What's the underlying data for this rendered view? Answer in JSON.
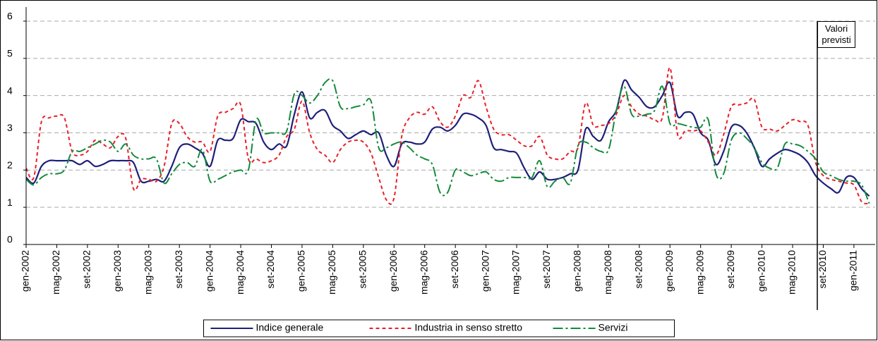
{
  "chart_data": {
    "type": "line",
    "annotation": "Valori previsti",
    "categories": [
      "gen-2002",
      null,
      null,
      null,
      "mag-2002",
      null,
      null,
      null,
      "set-2002",
      null,
      null,
      null,
      "gen-2003",
      null,
      null,
      null,
      "mag-2003",
      null,
      null,
      null,
      "set-2003",
      null,
      null,
      null,
      "gen-2004",
      null,
      null,
      null,
      "mag-2004",
      null,
      null,
      null,
      "set-2004",
      null,
      null,
      null,
      "gen-2005",
      null,
      null,
      null,
      "mag-2005",
      null,
      null,
      null,
      "set-2005",
      null,
      null,
      null,
      "gen-2006",
      null,
      null,
      null,
      "mag-2006",
      null,
      null,
      null,
      "set-2006",
      null,
      null,
      null,
      "gen-2007",
      null,
      null,
      null,
      "mag-2007",
      null,
      null,
      null,
      "set-2007",
      null,
      null,
      null,
      "gen-2008",
      null,
      null,
      null,
      "mag-2008",
      null,
      null,
      null,
      "set-2008",
      null,
      null,
      null,
      "gen-2009",
      null,
      null,
      null,
      "mag-2009",
      null,
      null,
      null,
      "set-2009",
      null,
      null,
      null,
      "gen-2010",
      null,
      null,
      null,
      "mag-2010",
      null,
      null,
      null,
      "set-2010",
      null,
      null,
      null,
      "gen-2011",
      null,
      null
    ],
    "series": [
      {
        "name": "Indice generale",
        "color": "#1f1f7a",
        "dash": "solid",
        "values": [
          1.8,
          1.65,
          2.1,
          2.25,
          2.25,
          2.25,
          2.25,
          2.15,
          2.25,
          2.1,
          2.15,
          2.25,
          2.25,
          2.25,
          2.2,
          1.7,
          1.7,
          1.75,
          1.7,
          2.1,
          2.6,
          2.7,
          2.6,
          2.45,
          2.1,
          2.8,
          2.8,
          2.85,
          3.35,
          3.3,
          3.25,
          2.75,
          2.55,
          2.7,
          2.65,
          3.5,
          4.1,
          3.4,
          3.55,
          3.6,
          3.2,
          3.05,
          2.85,
          2.95,
          3.05,
          2.95,
          3.0,
          2.4,
          2.1,
          2.7,
          2.75,
          2.7,
          2.75,
          3.1,
          3.15,
          3.05,
          3.2,
          3.5,
          3.5,
          3.4,
          3.2,
          2.6,
          2.55,
          2.5,
          2.45,
          2.05,
          1.75,
          1.95,
          1.75,
          1.75,
          1.8,
          1.9,
          2.0,
          3.1,
          2.9,
          2.8,
          3.3,
          3.6,
          4.4,
          4.15,
          3.95,
          3.7,
          3.7,
          4.0,
          4.35,
          3.45,
          3.55,
          3.5,
          3.0,
          2.8,
          2.15,
          2.5,
          3.15,
          3.2,
          3.0,
          2.6,
          2.1,
          2.3,
          2.45,
          2.55,
          2.5,
          2.4,
          2.2,
          1.85,
          1.65,
          1.5,
          1.4,
          1.8,
          1.8,
          1.5,
          1.3
        ]
      },
      {
        "name": "Industria in senso stretto",
        "color": "#e8202a",
        "dash": "dashed",
        "values": [
          2.05,
          1.8,
          3.3,
          3.4,
          3.45,
          3.4,
          2.5,
          2.4,
          2.5,
          2.8,
          2.7,
          2.6,
          2.9,
          2.85,
          1.5,
          1.75,
          1.75,
          1.7,
          2.1,
          3.25,
          3.25,
          2.9,
          2.75,
          2.75,
          2.5,
          3.45,
          3.55,
          3.65,
          3.75,
          2.3,
          2.3,
          2.2,
          2.25,
          2.4,
          2.9,
          3.1,
          3.85,
          3.0,
          2.55,
          2.4,
          2.2,
          2.55,
          2.75,
          2.8,
          2.75,
          2.45,
          1.8,
          1.2,
          1.25,
          2.9,
          3.4,
          3.55,
          3.5,
          3.7,
          3.3,
          3.15,
          3.45,
          4.0,
          3.95,
          4.4,
          3.7,
          3.1,
          2.95,
          2.95,
          2.8,
          2.65,
          2.65,
          2.9,
          2.4,
          2.3,
          2.3,
          2.5,
          2.6,
          3.8,
          3.2,
          3.2,
          3.25,
          3.5,
          4.0,
          3.7,
          3.5,
          3.45,
          3.35,
          3.4,
          4.75,
          2.95,
          3.05,
          3.05,
          3.05,
          2.75,
          2.4,
          2.95,
          3.7,
          3.75,
          3.8,
          3.9,
          3.15,
          3.1,
          3.05,
          3.2,
          3.35,
          3.3,
          3.2,
          2.2,
          1.85,
          1.75,
          1.7,
          1.65,
          1.6,
          1.15,
          1.1
        ]
      },
      {
        "name": "Servizi",
        "color": "#138a3c",
        "dash": "dashdot",
        "values": [
          1.75,
          1.6,
          1.8,
          1.9,
          1.9,
          2.0,
          2.5,
          2.5,
          2.6,
          2.7,
          2.8,
          2.75,
          2.5,
          2.7,
          2.4,
          2.3,
          2.3,
          2.3,
          1.65,
          1.9,
          2.15,
          2.2,
          2.1,
          2.55,
          1.7,
          1.75,
          1.85,
          1.95,
          2.0,
          2.0,
          3.35,
          3.0,
          3.0,
          3.0,
          3.05,
          4.05,
          4.0,
          3.8,
          4.0,
          4.35,
          4.4,
          3.7,
          3.65,
          3.7,
          3.75,
          3.85,
          2.6,
          2.6,
          2.7,
          2.75,
          2.6,
          2.4,
          2.3,
          2.15,
          1.4,
          1.4,
          2.0,
          1.95,
          1.85,
          1.9,
          1.95,
          1.75,
          1.7,
          1.8,
          1.8,
          1.8,
          1.8,
          2.25,
          1.55,
          1.7,
          1.8,
          1.65,
          2.65,
          2.75,
          2.6,
          2.5,
          2.55,
          3.6,
          4.25,
          3.5,
          3.45,
          3.5,
          3.6,
          4.25,
          3.25,
          3.25,
          3.2,
          3.15,
          3.15,
          3.35,
          1.9,
          1.9,
          2.8,
          3.0,
          2.85,
          2.6,
          2.2,
          2.05,
          2.05,
          2.7,
          2.7,
          2.65,
          2.5,
          2.3,
          1.95,
          1.85,
          1.75,
          1.7,
          1.7,
          1.6,
          1.1
        ]
      }
    ],
    "ylim": [
      0,
      6
    ],
    "yticks": [
      0,
      1,
      2,
      3,
      4,
      5,
      6
    ],
    "grid": true,
    "legend": "bottom"
  }
}
